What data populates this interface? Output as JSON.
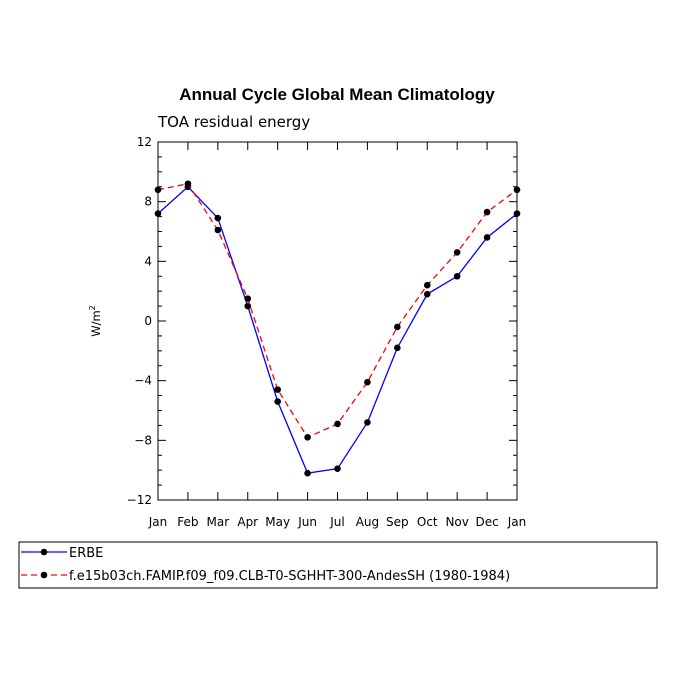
{
  "chart_data": {
    "type": "line",
    "title": "Annual Cycle Global Mean Climatology",
    "subtitle": "TOA residual energy",
    "ylabel": "W/m",
    "ylabel_sup": "2",
    "ylim": [
      -12,
      12
    ],
    "yticks": [
      12,
      8,
      4,
      0,
      -4,
      -8,
      -12
    ],
    "ytick_labels": [
      "12",
      "8",
      "4",
      "0",
      "−4",
      "−8",
      "−12"
    ],
    "categories": [
      "Jan",
      "Feb",
      "Mar",
      "Apr",
      "May",
      "Jun",
      "Jul",
      "Aug",
      "Sep",
      "Oct",
      "Nov",
      "Dec",
      "Jan"
    ],
    "grid": false,
    "legend_position": "bottom",
    "series": [
      {
        "name": "ERBE",
        "color": "#0000ff",
        "style": "solid",
        "values": [
          7.2,
          9.0,
          6.9,
          1.0,
          -5.4,
          -10.2,
          -9.9,
          -6.8,
          -1.8,
          1.8,
          3.0,
          5.6,
          7.2
        ]
      },
      {
        "name": "f.e15b03ch.FAMIP.f09_f09.CLB-T0-SGHHT-300-AndesSH (1980-1984)",
        "color": "#ff0000",
        "style": "dashed",
        "values": [
          8.8,
          9.2,
          6.1,
          1.5,
          -4.6,
          -7.8,
          -6.9,
          -4.1,
          -0.4,
          2.4,
          4.6,
          7.3,
          8.8
        ]
      }
    ]
  }
}
